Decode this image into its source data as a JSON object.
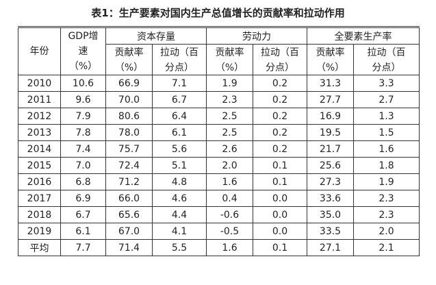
{
  "title": "表1：生产要素对国内生产总值增长的贡献率和拉动作用",
  "header": {
    "year": "年份",
    "gdp_line1": "GDP增",
    "gdp_line2": "速",
    "gdp_line3": "（%）",
    "capital": "资本存量",
    "labor": "劳动力",
    "tfp": "全要素生产率",
    "contrib_line1": "贡献率",
    "contrib_line2": "（%）",
    "pull_line1": "拉动（百",
    "pull_line2": "分点）"
  },
  "rows": [
    {
      "year": "2010",
      "gdp": "10.6",
      "cap_c": "66.9",
      "cap_p": "7.1",
      "lab_c": "1.9",
      "lab_p": "0.2",
      "tfp_c": "31.3",
      "tfp_p": "3.3"
    },
    {
      "year": "2011",
      "gdp": "9.6",
      "cap_c": "70.0",
      "cap_p": "6.7",
      "lab_c": "2.3",
      "lab_p": "0.2",
      "tfp_c": "27.7",
      "tfp_p": "2.7"
    },
    {
      "year": "2012",
      "gdp": "7.9",
      "cap_c": "80.6",
      "cap_p": "6.4",
      "lab_c": "2.5",
      "lab_p": "0.2",
      "tfp_c": "16.9",
      "tfp_p": "1.3"
    },
    {
      "year": "2013",
      "gdp": "7.8",
      "cap_c": "78.0",
      "cap_p": "6.1",
      "lab_c": "2.5",
      "lab_p": "0.2",
      "tfp_c": "19.5",
      "tfp_p": "1.5"
    },
    {
      "year": "2014",
      "gdp": "7.4",
      "cap_c": "75.7",
      "cap_p": "5.6",
      "lab_c": "2.6",
      "lab_p": "0.2",
      "tfp_c": "21.7",
      "tfp_p": "1.6"
    },
    {
      "year": "2015",
      "gdp": "7.0",
      "cap_c": "72.4",
      "cap_p": "5.1",
      "lab_c": "2.0",
      "lab_p": "0.1",
      "tfp_c": "25.6",
      "tfp_p": "1.8"
    },
    {
      "year": "2016",
      "gdp": "6.8",
      "cap_c": "71.2",
      "cap_p": "4.8",
      "lab_c": "1.6",
      "lab_p": "0.1",
      "tfp_c": "27.3",
      "tfp_p": "1.9"
    },
    {
      "year": "2017",
      "gdp": "6.9",
      "cap_c": "66.0",
      "cap_p": "4.6",
      "lab_c": "0.4",
      "lab_p": "0.0",
      "tfp_c": "33.6",
      "tfp_p": "2.3"
    },
    {
      "year": "2018",
      "gdp": "6.7",
      "cap_c": "65.6",
      "cap_p": "4.4",
      "lab_c": "-0.6",
      "lab_p": "0.0",
      "tfp_c": "35.0",
      "tfp_p": "2.3"
    },
    {
      "year": "2019",
      "gdp": "6.1",
      "cap_c": "67.0",
      "cap_p": "4.1",
      "lab_c": "-0.5",
      "lab_p": "0.0",
      "tfp_c": "33.5",
      "tfp_p": "2.0"
    },
    {
      "year": "平均",
      "gdp": "7.7",
      "cap_c": "71.4",
      "cap_p": "5.5",
      "lab_c": "1.6",
      "lab_p": "0.1",
      "tfp_c": "27.1",
      "tfp_p": "2.1"
    }
  ]
}
